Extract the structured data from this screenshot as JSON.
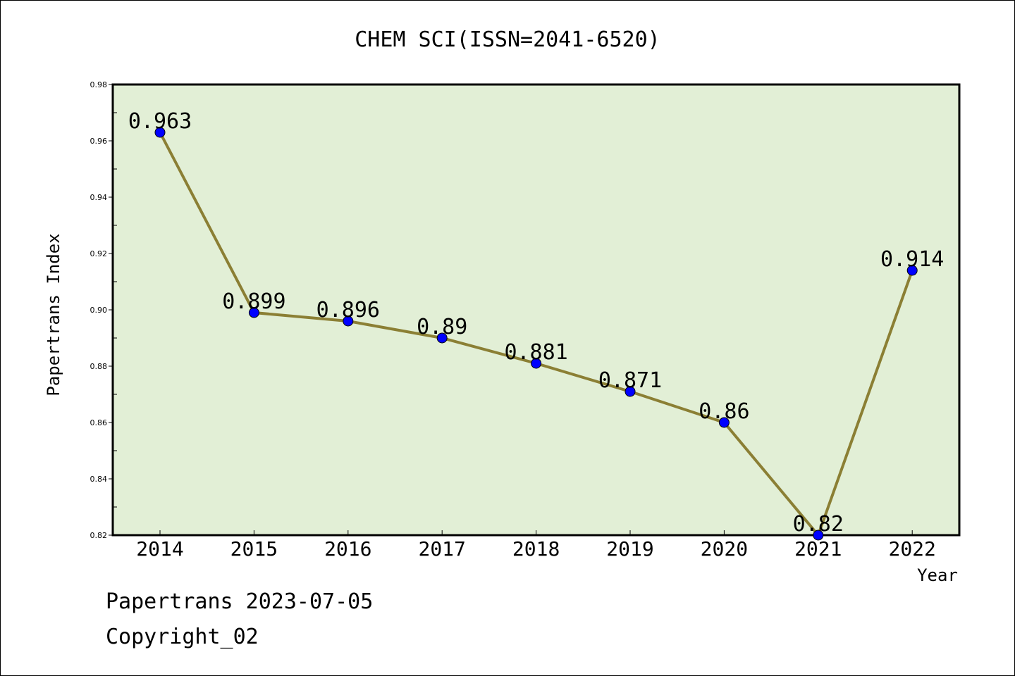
{
  "chart_data": {
    "type": "line",
    "title": "CHEM SCI(ISSN=2041-6520)",
    "xlabel": "Year",
    "ylabel": "Papertrans Index",
    "categories": [
      "2014",
      "2015",
      "2016",
      "2017",
      "2018",
      "2019",
      "2020",
      "2021",
      "2022"
    ],
    "values": [
      0.963,
      0.899,
      0.896,
      0.89,
      0.881,
      0.871,
      0.86,
      0.82,
      0.914
    ],
    "data_labels": [
      "0.963",
      "0.899",
      "0.896",
      "0.89",
      "0.881",
      "0.871",
      "0.86",
      "0.82",
      "0.914"
    ],
    "ylim": [
      0.82,
      0.98
    ],
    "yticks": [
      0.82,
      0.84,
      0.86,
      0.88,
      0.9,
      0.92,
      0.94,
      0.96,
      0.98
    ],
    "ytick_labels": [
      "0.82",
      "0.84",
      "0.86",
      "0.88",
      "0.90",
      "0.92",
      "0.94",
      "0.96",
      "0.98"
    ],
    "grid": false,
    "colors": {
      "plot_background": "#e2efd6",
      "line": "#8b7f34",
      "marker": "#0000ff"
    }
  },
  "footer": {
    "date_line": "Papertrans 2023-07-05",
    "copyright": "Copyright_02"
  }
}
